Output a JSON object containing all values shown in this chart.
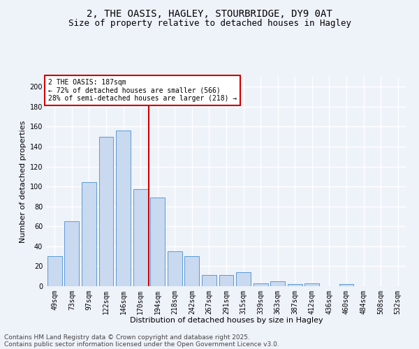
{
  "title_line1": "2, THE OASIS, HAGLEY, STOURBRIDGE, DY9 0AT",
  "title_line2": "Size of property relative to detached houses in Hagley",
  "xlabel": "Distribution of detached houses by size in Hagley",
  "ylabel": "Number of detached properties",
  "categories": [
    "49sqm",
    "73sqm",
    "97sqm",
    "122sqm",
    "146sqm",
    "170sqm",
    "194sqm",
    "218sqm",
    "242sqm",
    "267sqm",
    "291sqm",
    "315sqm",
    "339sqm",
    "363sqm",
    "387sqm",
    "412sqm",
    "436sqm",
    "460sqm",
    "484sqm",
    "508sqm",
    "532sqm"
  ],
  "values": [
    30,
    65,
    104,
    150,
    156,
    97,
    89,
    35,
    30,
    11,
    11,
    14,
    3,
    5,
    2,
    3,
    0,
    2,
    0,
    0,
    0
  ],
  "bar_color": "#c9d9f0",
  "bar_edge_color": "#5b9bd5",
  "property_line_x": 5.5,
  "annotation_text": "2 THE OASIS: 187sqm\n← 72% of detached houses are smaller (566)\n28% of semi-detached houses are larger (218) →",
  "annotation_box_color": "#ffffff",
  "annotation_box_edge": "#cc0000",
  "vline_color": "#cc0000",
  "ylim": [
    0,
    210
  ],
  "yticks": [
    0,
    20,
    40,
    60,
    80,
    100,
    120,
    140,
    160,
    180,
    200
  ],
  "footer_line1": "Contains HM Land Registry data © Crown copyright and database right 2025.",
  "footer_line2": "Contains public sector information licensed under the Open Government Licence v3.0.",
  "bg_color": "#eef2f9",
  "grid_color": "#ffffff",
  "title_fontsize": 10,
  "subtitle_fontsize": 9,
  "axis_label_fontsize": 8,
  "tick_fontsize": 7,
  "annotation_fontsize": 7,
  "footer_fontsize": 6.5
}
